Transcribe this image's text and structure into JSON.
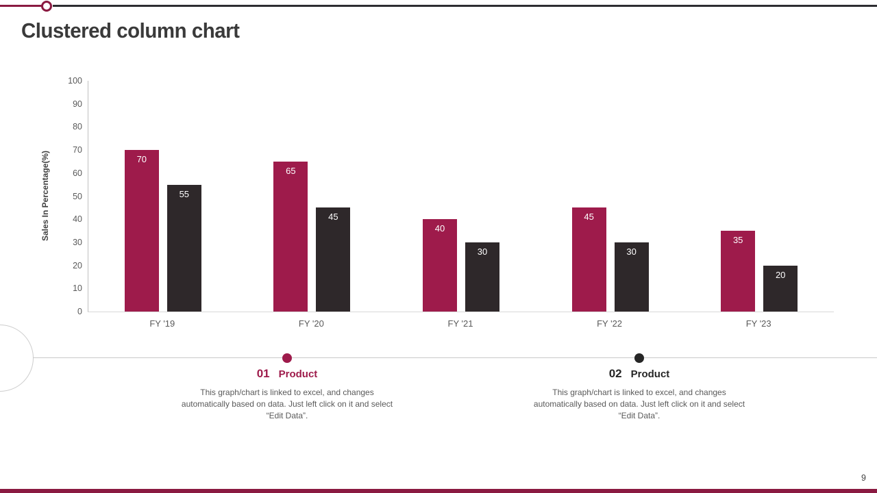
{
  "slide": {
    "title": "Clustered column chart",
    "page_number": "9",
    "accent_color": "#8A1A41",
    "dark_color": "#2D2D31"
  },
  "chart_data": {
    "type": "bar",
    "title": "",
    "categories": [
      "FY '19",
      "FY '20",
      "FY '21",
      "FY '22",
      "FY '23"
    ],
    "series": [
      {
        "name": "Product 01",
        "color": "#9E1B4B",
        "values": [
          70,
          65,
          40,
          45,
          35
        ]
      },
      {
        "name": "Product 02",
        "color": "#2E282A",
        "values": [
          55,
          45,
          30,
          30,
          20
        ]
      }
    ],
    "xlabel": "",
    "ylabel": "Sales In Percentage(%)",
    "ylim": [
      0,
      100
    ],
    "yticks": [
      0,
      10,
      20,
      30,
      40,
      50,
      60,
      70,
      80,
      90,
      100
    ],
    "grid": false,
    "legend_position": "below",
    "value_labels": "inside-top-white"
  },
  "legend": {
    "items": [
      {
        "number": "01",
        "label": "Product",
        "color": "#9E1B4B",
        "description": "This graph/chart is linked to excel, and changes automatically based on data. Just left click on it and select “Edit Data”."
      },
      {
        "number": "02",
        "label": "Product",
        "color": "#262626",
        "description": "This graph/chart is linked to excel, and changes automatically based on data. Just left click on it and select “Edit Data”."
      }
    ]
  }
}
